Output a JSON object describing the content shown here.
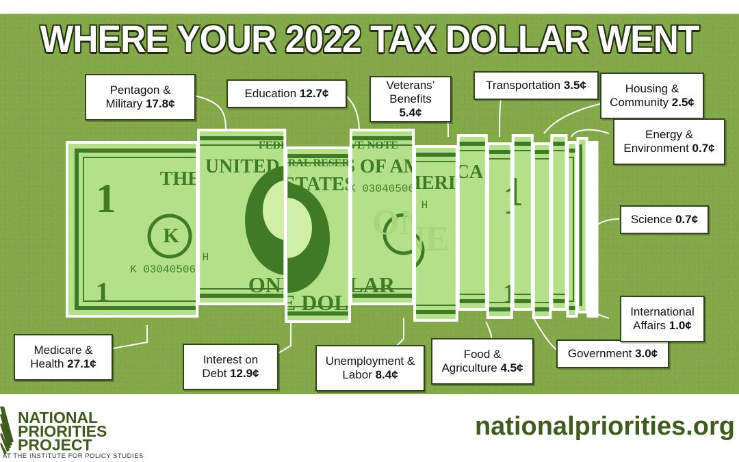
{
  "title": "WHERE YOUR 2022 TAX DOLLAR WENT",
  "colors": {
    "background_green": "#83a848",
    "bill_green": "#3f7a27",
    "label_border": "#2f4418",
    "brand_green": "#3e5c1c"
  },
  "chart_data": {
    "type": "pie",
    "title": "WHERE YOUR 2022 TAX DOLLAR WENT",
    "unit": "¢",
    "segments": [
      {
        "label": "Medicare & Health",
        "value": 27.1,
        "display": "27.1¢"
      },
      {
        "label": "Pentagon & Military",
        "value": 17.8,
        "display": "17.8¢"
      },
      {
        "label": "Interest on Debt",
        "value": 12.9,
        "display": "12.9¢"
      },
      {
        "label": "Education",
        "value": 12.7,
        "display": "12.7¢"
      },
      {
        "label": "Unemployment & Labor",
        "value": 8.4,
        "display": "8.4¢"
      },
      {
        "label": "Veterans' Benefits",
        "value": 5.4,
        "display": "5.4¢"
      },
      {
        "label": "Food & Agriculture",
        "value": 4.5,
        "display": "4.5¢"
      },
      {
        "label": "Transportation",
        "value": 3.5,
        "display": "3.5¢"
      },
      {
        "label": "Government",
        "value": 3.0,
        "display": "3.0¢"
      },
      {
        "label": "Housing & Community",
        "value": 2.5,
        "display": "2.5¢"
      },
      {
        "label": "International Affairs",
        "value": 1.0,
        "display": "1.0¢"
      },
      {
        "label": "Energy & Environment",
        "value": 0.7,
        "display": "0.7¢"
      },
      {
        "label": "Science",
        "value": 0.7,
        "display": "0.7¢"
      }
    ]
  },
  "labels": {
    "medicare": {
      "line1": "Medicare &",
      "line2": "Health",
      "value": "27.1¢"
    },
    "military": {
      "line1": "Pentagon &",
      "line2": "Military",
      "value": "17.8¢"
    },
    "debt": {
      "line1": "Interest on",
      "line2": "Debt",
      "value": "12.9¢"
    },
    "education": {
      "line1": "Education",
      "value": "12.7¢"
    },
    "unemployment": {
      "line1": "Unemployment &",
      "line2": "Labor",
      "value": "8.4¢"
    },
    "veterans": {
      "line1": "Veterans’",
      "line2": "Benefits",
      "value": "5.4¢"
    },
    "food": {
      "line1": "Food &",
      "line2": "Agriculture",
      "value": "4.5¢"
    },
    "transportation": {
      "line1": "Transportation",
      "value": "3.5¢"
    },
    "government": {
      "line1": "Government",
      "value": "3.0¢"
    },
    "housing": {
      "line1": "Housing &",
      "line2": "Community",
      "value": "2.5¢"
    },
    "international": {
      "line1": "International",
      "line2": "Affairs",
      "value": "1.0¢"
    },
    "energy": {
      "line1": "Energy &",
      "line2": "Environment",
      "value": "0.7¢"
    },
    "science": {
      "line1": "Science",
      "value": "0.7¢"
    }
  },
  "bill": {
    "header_text": "THE UNITED STATES OF AMERICA",
    "top_text": "FEDERAL RESERVE NOTE",
    "serial": "K 03040506 H",
    "denomination": "1",
    "bottom_text": "ONE DOLLAR",
    "seal_letter": "K",
    "word_one": "ONE"
  },
  "footer": {
    "org_line1": "NATIONAL",
    "org_line2": "PRIORITIES",
    "org_line3": "PROJECT",
    "org_sub": "AT THE INSTITUTE FOR POLICY STUDIES",
    "url": "nationalpriorities.org"
  }
}
